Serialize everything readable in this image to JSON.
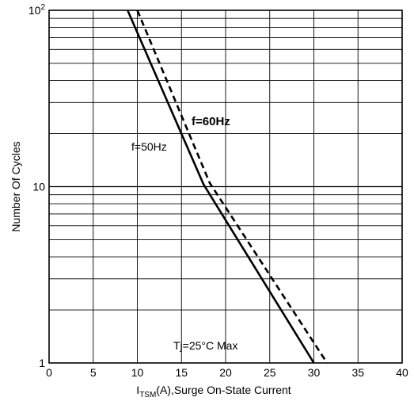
{
  "chart_data": {
    "type": "line",
    "xlabel_main": "I",
    "xlabel_sub": "TSM",
    "xlabel_rest": "(A),Surge On-State Current",
    "ylabel": "Number Of Cycles",
    "xlim": [
      0,
      40
    ],
    "ylim": [
      1,
      100
    ],
    "yscale": "log",
    "grid": true,
    "x_ticks": [
      0,
      5,
      10,
      15,
      20,
      25,
      30,
      35,
      40
    ],
    "x_tick_labels": [
      "0",
      "5",
      "10",
      "15",
      "20",
      "25",
      "30",
      "35",
      "40"
    ],
    "y_ticks": [
      1,
      10,
      100
    ],
    "y_tick_labels": [
      {
        "base": "1",
        "exp": ""
      },
      {
        "base": "10",
        "exp": ""
      },
      {
        "base": "10",
        "exp": "2"
      }
    ],
    "series": [
      {
        "name": "f=50Hz",
        "style": "solid",
        "x": [
          8.9,
          17.5,
          30.0
        ],
        "y": [
          100,
          10.3,
          1
        ]
      },
      {
        "name": "f=60Hz",
        "style": "dashed",
        "x": [
          10.0,
          18.2,
          31.5
        ],
        "y": [
          100,
          10.5,
          1
        ]
      }
    ],
    "annotations": {
      "f60": "f=60Hz",
      "f50": "f=50Hz",
      "condition": "Tj=25°C Max"
    }
  }
}
